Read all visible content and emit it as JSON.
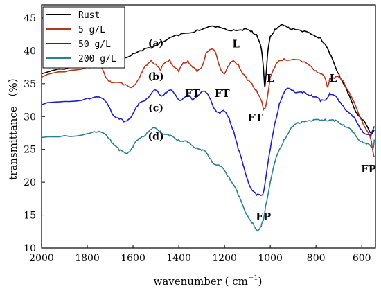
{
  "chart_data": {
    "type": "line",
    "xlabel": "wavenumber ( cm",
    "xlabel_sup": "−1",
    "xlabel_close": ")",
    "ylabel": "transmittance （%）",
    "xlim": [
      2000,
      540
    ],
    "ylim": [
      10,
      47
    ],
    "x_reversed": true,
    "xticks": [
      2000,
      1800,
      1600,
      1400,
      1200,
      1000,
      800,
      600
    ],
    "yticks": [
      10,
      15,
      20,
      25,
      30,
      35,
      40,
      45
    ],
    "legend_position": "top-left",
    "series": [
      {
        "name": "Rust",
        "color": "#000000",
        "points": [
          [
            2000,
            36.5
          ],
          [
            1900,
            37.2
          ],
          [
            1800,
            37.8
          ],
          [
            1760,
            38.2
          ],
          [
            1720,
            38.6
          ],
          [
            1680,
            38.6
          ],
          [
            1640,
            39.0
          ],
          [
            1600,
            39.6
          ],
          [
            1560,
            40.0
          ],
          [
            1520,
            40.4
          ],
          [
            1480,
            41.4
          ],
          [
            1440,
            42.0
          ],
          [
            1400,
            42.3
          ],
          [
            1360,
            42.7
          ],
          [
            1320,
            43.2
          ],
          [
            1280,
            43.5
          ],
          [
            1240,
            43.6
          ],
          [
            1200,
            43.4
          ],
          [
            1160,
            43.2
          ],
          [
            1120,
            43.1
          ],
          [
            1100,
            43.2
          ],
          [
            1080,
            43.0
          ],
          [
            1060,
            42.5
          ],
          [
            1040,
            40.5
          ],
          [
            1030,
            37.5
          ],
          [
            1024,
            34.5
          ],
          [
            1018,
            36.5
          ],
          [
            1010,
            40.0
          ],
          [
            1000,
            42.2
          ],
          [
            980,
            43.3
          ],
          [
            960,
            43.7
          ],
          [
            940,
            43.8
          ],
          [
            920,
            43.6
          ],
          [
            900,
            43.4
          ],
          [
            860,
            42.9
          ],
          [
            820,
            42.5
          ],
          [
            780,
            42.0
          ],
          [
            760,
            41.0
          ],
          [
            740,
            39.5
          ],
          [
            720,
            38.0
          ],
          [
            700,
            36.5
          ],
          [
            680,
            35.0
          ],
          [
            660,
            33.5
          ],
          [
            640,
            32.0
          ],
          [
            620,
            30.5
          ],
          [
            600,
            29.5
          ],
          [
            580,
            28.7
          ],
          [
            560,
            27.5
          ],
          [
            545,
            28.0
          ]
        ]
      },
      {
        "name": "5 g/L",
        "color": "#b5361a",
        "points": [
          [
            2000,
            36.0
          ],
          [
            1900,
            36.8
          ],
          [
            1800,
            37.5
          ],
          [
            1760,
            38.0
          ],
          [
            1740,
            37.5
          ],
          [
            1720,
            36.0
          ],
          [
            1700,
            35.4
          ],
          [
            1680,
            35.2
          ],
          [
            1640,
            34.8
          ],
          [
            1610,
            34.4
          ],
          [
            1580,
            35.5
          ],
          [
            1560,
            36.8
          ],
          [
            1540,
            37.8
          ],
          [
            1520,
            38.6
          ],
          [
            1500,
            38.0
          ],
          [
            1480,
            37.0
          ],
          [
            1460,
            38.2
          ],
          [
            1440,
            38.7
          ],
          [
            1420,
            37.5
          ],
          [
            1400,
            36.8
          ],
          [
            1380,
            38.2
          ],
          [
            1360,
            38.5
          ],
          [
            1340,
            37.5
          ],
          [
            1320,
            36.8
          ],
          [
            1300,
            37.5
          ],
          [
            1280,
            39.8
          ],
          [
            1260,
            40.2
          ],
          [
            1240,
            39.8
          ],
          [
            1220,
            37.5
          ],
          [
            1200,
            36.5
          ],
          [
            1180,
            37.8
          ],
          [
            1160,
            38.5
          ],
          [
            1140,
            38.0
          ],
          [
            1120,
            36.5
          ],
          [
            1100,
            35.5
          ],
          [
            1080,
            35.0
          ],
          [
            1060,
            34.0
          ],
          [
            1040,
            32.5
          ],
          [
            1030,
            31.0
          ],
          [
            1020,
            31.5
          ],
          [
            1000,
            36.0
          ],
          [
            980,
            37.5
          ],
          [
            960,
            38.5
          ],
          [
            940,
            38.8
          ],
          [
            900,
            38.7
          ],
          [
            860,
            38.3
          ],
          [
            820,
            37.6
          ],
          [
            800,
            37.0
          ],
          [
            780,
            36.5
          ],
          [
            760,
            35.8
          ],
          [
            750,
            34.5
          ],
          [
            740,
            35.8
          ],
          [
            720,
            35.8
          ],
          [
            700,
            36.0
          ],
          [
            680,
            35.5
          ],
          [
            660,
            34.0
          ],
          [
            640,
            32.5
          ],
          [
            620,
            31.0
          ],
          [
            600,
            29.5
          ],
          [
            580,
            28.0
          ],
          [
            560,
            26.5
          ],
          [
            550,
            24.5
          ],
          [
            545,
            24.0
          ]
        ]
      },
      {
        "name": "50 g/L",
        "color": "#1c1fc9",
        "points": [
          [
            2000,
            31.8
          ],
          [
            1900,
            32.3
          ],
          [
            1800,
            32.8
          ],
          [
            1760,
            33.0
          ],
          [
            1720,
            32.3
          ],
          [
            1700,
            31.2
          ],
          [
            1680,
            30.0
          ],
          [
            1660,
            29.6
          ],
          [
            1640,
            29.2
          ],
          [
            1620,
            29.6
          ],
          [
            1600,
            30.5
          ],
          [
            1580,
            31.6
          ],
          [
            1560,
            32.3
          ],
          [
            1540,
            32.8
          ],
          [
            1520,
            33.5
          ],
          [
            1500,
            34.0
          ],
          [
            1480,
            33.2
          ],
          [
            1460,
            33.6
          ],
          [
            1440,
            34.0
          ],
          [
            1420,
            33.5
          ],
          [
            1400,
            32.6
          ],
          [
            1380,
            32.8
          ],
          [
            1360,
            33.2
          ],
          [
            1340,
            32.5
          ],
          [
            1320,
            33.3
          ],
          [
            1300,
            33.8
          ],
          [
            1280,
            33.6
          ],
          [
            1260,
            32.5
          ],
          [
            1240,
            31.0
          ],
          [
            1220,
            30.5
          ],
          [
            1200,
            30.8
          ],
          [
            1180,
            29.8
          ],
          [
            1160,
            27.8
          ],
          [
            1140,
            25.0
          ],
          [
            1120,
            22.8
          ],
          [
            1100,
            20.5
          ],
          [
            1080,
            18.8
          ],
          [
            1060,
            18.0
          ],
          [
            1040,
            18.0
          ],
          [
            1030,
            18.5
          ],
          [
            1020,
            20.5
          ],
          [
            1000,
            25.0
          ],
          [
            980,
            29.0
          ],
          [
            960,
            32.0
          ],
          [
            940,
            33.6
          ],
          [
            920,
            34.3
          ],
          [
            900,
            34.0
          ],
          [
            880,
            33.7
          ],
          [
            860,
            33.6
          ],
          [
            840,
            33.4
          ],
          [
            820,
            33.3
          ],
          [
            800,
            33.0
          ],
          [
            780,
            32.3
          ],
          [
            760,
            32.5
          ],
          [
            740,
            33.6
          ],
          [
            720,
            33.2
          ],
          [
            700,
            32.3
          ],
          [
            680,
            31.6
          ],
          [
            660,
            30.8
          ],
          [
            640,
            30.0
          ],
          [
            620,
            29.0
          ],
          [
            600,
            28.0
          ],
          [
            580,
            27.3
          ],
          [
            560,
            27.0
          ],
          [
            545,
            28.5
          ]
        ]
      },
      {
        "name": "200 g/L",
        "color": "#2a7f93",
        "points": [
          [
            2000,
            26.8
          ],
          [
            1900,
            27.1
          ],
          [
            1800,
            27.4
          ],
          [
            1760,
            27.6
          ],
          [
            1720,
            27.3
          ],
          [
            1700,
            26.6
          ],
          [
            1680,
            25.6
          ],
          [
            1660,
            24.8
          ],
          [
            1640,
            24.6
          ],
          [
            1620,
            24.6
          ],
          [
            1600,
            25.4
          ],
          [
            1580,
            26.4
          ],
          [
            1560,
            27.0
          ],
          [
            1540,
            27.5
          ],
          [
            1520,
            28.0
          ],
          [
            1500,
            28.2
          ],
          [
            1480,
            27.8
          ],
          [
            1460,
            27.3
          ],
          [
            1440,
            27.0
          ],
          [
            1420,
            26.8
          ],
          [
            1400,
            26.5
          ],
          [
            1380,
            26.2
          ],
          [
            1360,
            26.0
          ],
          [
            1340,
            25.6
          ],
          [
            1320,
            25.3
          ],
          [
            1300,
            24.8
          ],
          [
            1280,
            24.5
          ],
          [
            1260,
            23.5
          ],
          [
            1240,
            22.7
          ],
          [
            1220,
            22.4
          ],
          [
            1200,
            21.8
          ],
          [
            1180,
            20.8
          ],
          [
            1160,
            19.6
          ],
          [
            1140,
            18.0
          ],
          [
            1120,
            16.5
          ],
          [
            1100,
            15.0
          ],
          [
            1080,
            13.8
          ],
          [
            1070,
            13.2
          ],
          [
            1060,
            12.8
          ],
          [
            1050,
            12.8
          ],
          [
            1040,
            13.2
          ],
          [
            1030,
            14.2
          ],
          [
            1020,
            16.5
          ],
          [
            1000,
            20.0
          ],
          [
            980,
            23.0
          ],
          [
            960,
            25.0
          ],
          [
            940,
            26.5
          ],
          [
            920,
            27.5
          ],
          [
            900,
            28.5
          ],
          [
            880,
            29.1
          ],
          [
            860,
            29.3
          ],
          [
            820,
            29.3
          ],
          [
            780,
            29.4
          ],
          [
            760,
            29.6
          ],
          [
            740,
            29.5
          ],
          [
            720,
            29.3
          ],
          [
            700,
            29.1
          ],
          [
            680,
            28.8
          ],
          [
            660,
            28.3
          ],
          [
            640,
            27.6
          ],
          [
            620,
            26.8
          ],
          [
            600,
            26.3
          ],
          [
            580,
            25.8
          ],
          [
            560,
            25.4
          ],
          [
            550,
            25.2
          ],
          [
            545,
            26.5
          ]
        ]
      }
    ],
    "annotations": [
      {
        "text": "(a)",
        "x": 1500,
        "y": 40.7,
        "kind": "letter"
      },
      {
        "text": "(b)",
        "x": 1500,
        "y": 35.6,
        "kind": "letter"
      },
      {
        "text": "(c)",
        "x": 1500,
        "y": 30.8,
        "kind": "letter"
      },
      {
        "text": "(d)",
        "x": 1500,
        "y": 26.5,
        "kind": "letter"
      },
      {
        "text": "L",
        "x": 1150,
        "y": 40.5,
        "kind": "label"
      },
      {
        "text": "L",
        "x": 1000,
        "y": 35.3,
        "kind": "label"
      },
      {
        "text": "L",
        "x": 725,
        "y": 35.3,
        "kind": "label"
      },
      {
        "text": "FT",
        "x": 1340,
        "y": 33.0,
        "kind": "label"
      },
      {
        "text": "FT",
        "x": 1210,
        "y": 33.0,
        "kind": "label"
      },
      {
        "text": "FT",
        "x": 1065,
        "y": 29.3,
        "kind": "label"
      },
      {
        "text": "FP",
        "x": 1030,
        "y": 14.2,
        "kind": "label"
      },
      {
        "text": "FP",
        "x": 570,
        "y": 21.5,
        "kind": "label"
      }
    ]
  }
}
